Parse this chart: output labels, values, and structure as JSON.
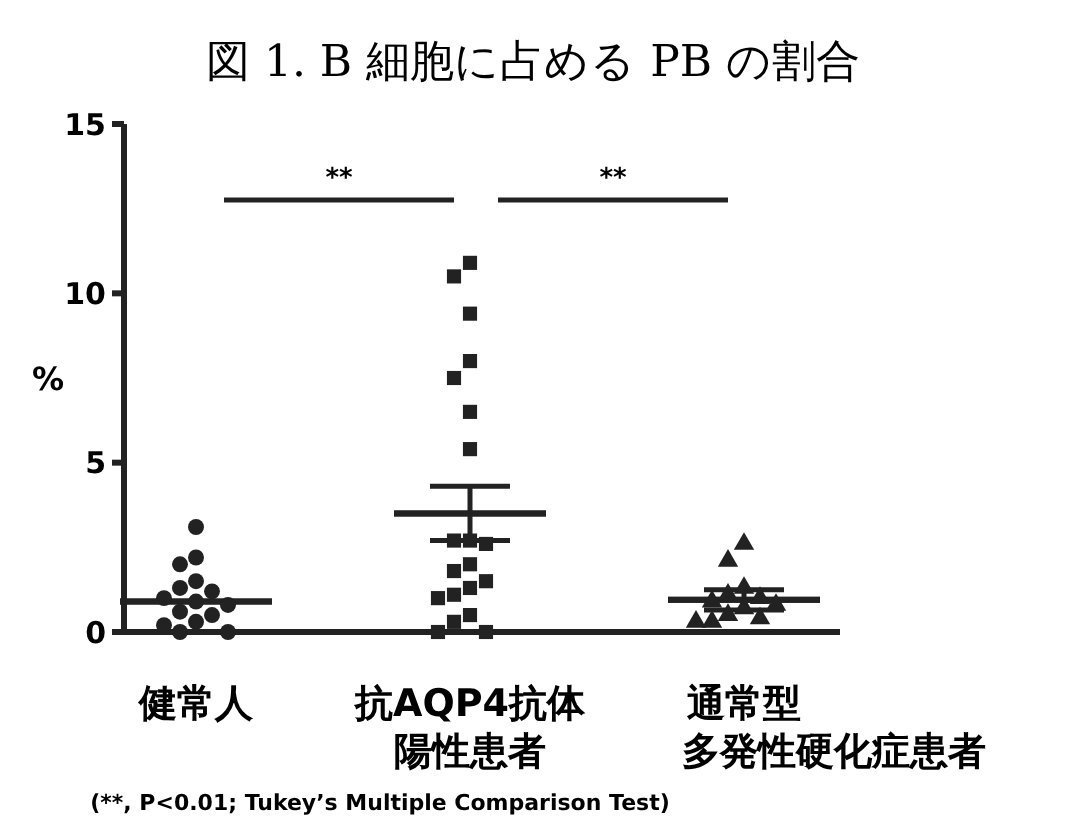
{
  "chart_data": {
    "type": "scatter",
    "title": "図 1. B 細胞に占める PB の割合",
    "ylabel": "%",
    "categories": [
      "健常人",
      "抗AQP4抗体陽性患者",
      "通常型多発性硬化症患者"
    ],
    "ylim": [
      0,
      15
    ],
    "yticks": [
      0,
      5,
      10,
      15
    ],
    "series": [
      {
        "marker": "circle",
        "color": "#222222",
        "x": [
          "健常人",
          "健常人",
          "健常人",
          "健常人",
          "健常人",
          "健常人",
          "健常人",
          "健常人",
          "健常人",
          "健常人",
          "健常人",
          "健常人",
          "健常人",
          "健常人",
          "健常人"
        ],
        "values": [
          3.1,
          2.2,
          2.0,
          1.5,
          1.3,
          1.2,
          1.0,
          0.9,
          0.8,
          0.6,
          0.5,
          0.3,
          0.2,
          0.0,
          0.0
        ]
      },
      {
        "marker": "square",
        "color": "#222222",
        "x": [
          "抗AQP4抗体陽性患者",
          "抗AQP4抗体陽性患者",
          "抗AQP4抗体陽性患者",
          "抗AQP4抗体陽性患者",
          "抗AQP4抗体陽性患者",
          "抗AQP4抗体陽性患者",
          "抗AQP4抗体陽性患者",
          "抗AQP4抗体陽性患者",
          "抗AQP4抗体陽性患者",
          "抗AQP4抗体陽性患者",
          "抗AQP4抗体陽性患者",
          "抗AQP4抗体陽性患者",
          "抗AQP4抗体陽性患者",
          "抗AQP4抗体陽性患者",
          "抗AQP4抗体陽性患者",
          "抗AQP4抗体陽性患者",
          "抗AQP4抗体陽性患者",
          "抗AQP4抗体陽性患者",
          "抗AQP4抗体陽性患者",
          "抗AQP4抗体陽性患者"
        ],
        "values": [
          10.9,
          10.5,
          9.4,
          8.0,
          7.5,
          6.5,
          5.4,
          2.7,
          2.7,
          2.6,
          2.0,
          1.8,
          1.5,
          1.3,
          1.1,
          1.0,
          0.5,
          0.3,
          0.0,
          0.0
        ]
      },
      {
        "marker": "triangle",
        "color": "#222222",
        "x": [
          "通常型多発性硬化症患者",
          "通常型多発性硬化症患者",
          "通常型多発性硬化症患者",
          "通常型多発性硬化症患者",
          "通常型多発性硬化症患者",
          "通常型多発性硬化症患者",
          "通常型多発性硬化症患者",
          "通常型多発性硬化症患者",
          "通常型多発性硬化症患者",
          "通常型多発性硬化症患者",
          "通常型多発性硬化症患者",
          "通常型多発性硬化症患者"
        ],
        "values": [
          2.6,
          2.1,
          1.3,
          1.1,
          1.0,
          0.9,
          0.8,
          0.7,
          0.5,
          0.4,
          0.3,
          0.3
        ]
      },
      {
        "type": "box",
        "color": "#222222",
        "boxes": [
          {
            "low": 0.9,
            "q1": 0.9,
            "median": 0.9,
            "q3": 0.9,
            "high": 0.9
          },
          {
            "low": 2.7,
            "q1": 3.5,
            "median": 3.5,
            "q3": 3.5,
            "high": 4.3
          },
          {
            "low": 0.65,
            "q1": 0.95,
            "median": 0.95,
            "q3": 0.95,
            "high": 1.25
          }
        ]
      }
    ],
    "annotations": [
      "**",
      "**",
      "(**, P<0.01; Tukey’s Multiple Comparison Test)"
    ]
  }
}
